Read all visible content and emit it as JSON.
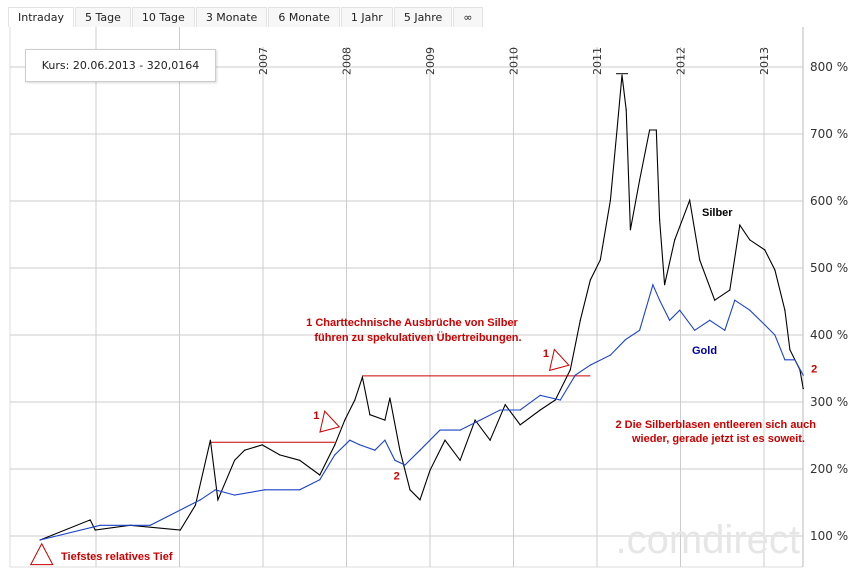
{
  "tabs": [
    "Intraday",
    "5 Tage",
    "10 Tage",
    "3 Monate",
    "6 Monate",
    "1 Jahr",
    "5 Jahre",
    "∞"
  ],
  "active_tab": "Intraday",
  "tooltip": "Kurs: 20.06.2013 - 320,0164",
  "watermark": ".comdirect",
  "colors": {
    "silver": "#000000",
    "gold": "#1a44c8",
    "annotation": "#cc0000",
    "grid": "#cccccc"
  },
  "chart_data": {
    "type": "line",
    "title": "",
    "xlabel": "",
    "ylabel": "",
    "x_unit": "year",
    "xlim": [
      2004.3,
      2013.47
    ],
    "ylim": [
      80,
      850
    ],
    "x_ticks": [
      "2007",
      "2008",
      "2009",
      "2010",
      "2011",
      "2012",
      "2013"
    ],
    "x_tick_values": [
      2007,
      2008,
      2009,
      2010,
      2011,
      2012,
      2013
    ],
    "x_grid_extra": [
      2005,
      2006
    ],
    "y_ticks": [
      "100 %",
      "200 %",
      "300 %",
      "400 %",
      "500 %",
      "600 %",
      "700 %",
      "800 %"
    ],
    "y_tick_values": [
      100,
      200,
      300,
      400,
      500,
      600,
      700,
      800
    ],
    "y_axis_side": "right",
    "grid": true,
    "series": [
      {
        "name": "Silber",
        "color": "#000000",
        "x": [
          2004.33,
          2004.93,
          2004.99,
          2005.41,
          2006.01,
          2006.19,
          2006.37,
          2006.46,
          2006.66,
          2006.78,
          2006.99,
          2007.2,
          2007.44,
          2007.68,
          2007.86,
          2007.98,
          2008.1,
          2008.19,
          2008.28,
          2008.46,
          2008.52,
          2008.64,
          2008.76,
          2008.88,
          2009.0,
          2009.18,
          2009.36,
          2009.54,
          2009.72,
          2009.9,
          2010.08,
          2010.32,
          2010.5,
          2010.68,
          2010.8,
          2010.92,
          2011.04,
          2011.16,
          2011.24,
          2011.3,
          2011.35,
          2011.4,
          2011.51,
          2011.63,
          2011.71,
          2011.75,
          2011.81,
          2011.93,
          2012.11,
          2012.23,
          2012.41,
          2012.59,
          2012.71,
          2012.83,
          2013.01,
          2013.13,
          2013.25,
          2013.31,
          2013.43,
          2013.47
        ],
        "y": [
          94,
          124,
          109,
          116,
          109,
          146,
          243,
          154,
          213,
          228,
          236,
          221,
          213,
          191,
          236,
          273,
          303,
          337,
          281,
          273,
          306,
          228,
          169,
          154,
          198,
          243,
          213,
          273,
          243,
          296,
          266,
          288,
          303,
          348,
          422,
          482,
          512,
          601,
          706,
          788,
          736,
          557,
          631,
          706,
          706,
          572,
          475,
          542,
          601,
          512,
          452,
          467,
          564,
          542,
          527,
          497,
          437,
          378,
          348,
          320
        ]
      },
      {
        "name": "Gold",
        "color": "#1a44c8",
        "x": [
          2004.33,
          2005.05,
          2005.65,
          2006.25,
          2006.43,
          2006.66,
          2007.02,
          2007.44,
          2007.68,
          2007.86,
          2008.04,
          2008.16,
          2008.34,
          2008.46,
          2008.58,
          2008.7,
          2008.88,
          2009.12,
          2009.36,
          2009.6,
          2009.84,
          2010.08,
          2010.32,
          2010.56,
          2010.74,
          2010.92,
          2011.16,
          2011.34,
          2011.51,
          2011.67,
          2011.75,
          2011.87,
          2011.99,
          2012.17,
          2012.35,
          2012.53,
          2012.65,
          2012.83,
          2013.01,
          2013.13,
          2013.25,
          2013.37,
          2013.47
        ],
        "y": [
          94,
          116,
          116,
          154,
          169,
          161,
          169,
          169,
          184,
          221,
          243,
          236,
          228,
          243,
          213,
          206,
          228,
          258,
          258,
          273,
          288,
          288,
          310,
          303,
          340,
          355,
          370,
          393,
          407,
          475,
          452,
          422,
          437,
          407,
          422,
          407,
          452,
          437,
          415,
          400,
          363,
          363,
          340
        ]
      }
    ],
    "peak_marker": {
      "x": 2011.3,
      "y": 790
    },
    "annotations": {
      "breakout_lines": [
        {
          "x": [
            2006.37,
            2007.86
          ],
          "y": 240
        },
        {
          "x": [
            2008.19,
            2010.92
          ],
          "y": 339
        }
      ],
      "triangles": [
        {
          "x": 2004.35,
          "y": 72,
          "label": ""
        },
        {
          "x": 2007.77,
          "y": 272,
          "label": "1"
        },
        {
          "x": 2010.52,
          "y": 364,
          "label": "1"
        }
      ],
      "labels_2": [
        {
          "x": 2008.6,
          "y": 190,
          "text": "2"
        },
        {
          "x": 2013.6,
          "y": 350,
          "text": "2"
        }
      ],
      "text1_line1": "1 Charttechnische Ausbrüche von Silber",
      "text1_line2": "führen zu spekulativen Übertreibungen.",
      "text2_line1": "2 Die Silberblasen entleeren sich auch",
      "text2_line2": "wieder, gerade jetzt ist es soweit.",
      "low_label": "Tiefstes relatives Tief",
      "silver_label": "Silber",
      "gold_label": "Gold"
    }
  }
}
